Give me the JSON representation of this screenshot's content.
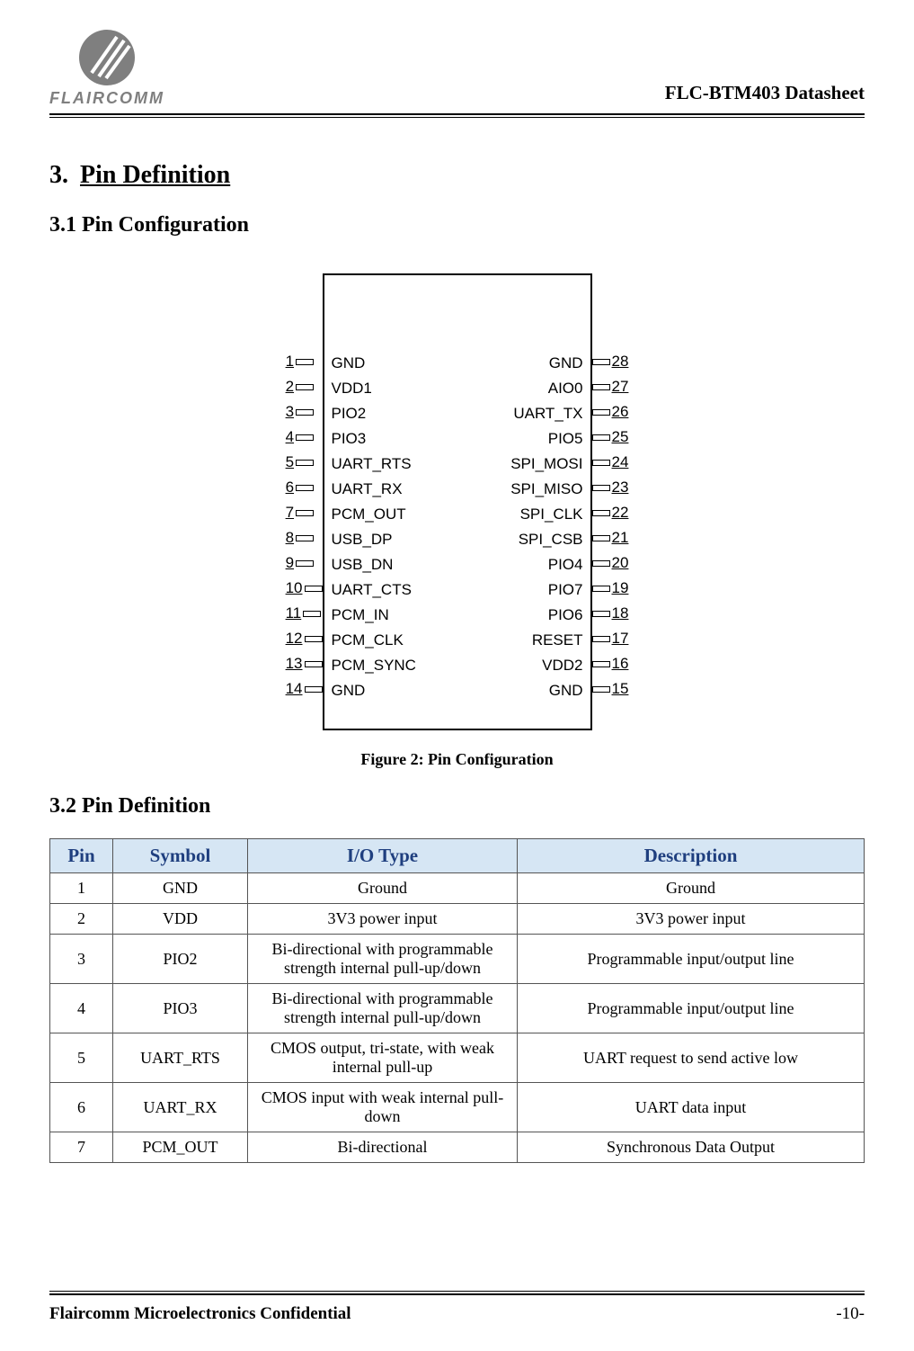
{
  "brand": {
    "name": "FLAIRCOMM"
  },
  "doc": {
    "title": "FLC-BTM403 Datasheet",
    "footer_confidential": "Flaircomm Microelectronics Confidential",
    "page_number": "-10-"
  },
  "section": {
    "number": "3.",
    "title": "Pin Definition",
    "sub1": "3.1  Pin Configuration",
    "sub2": "3.2  Pin Definition",
    "figure_caption": "Figure 2: Pin Configuration"
  },
  "pinout": {
    "left": [
      {
        "num": "1",
        "label": "GND"
      },
      {
        "num": "2",
        "label": "VDD1"
      },
      {
        "num": "3",
        "label": "PIO2"
      },
      {
        "num": "4",
        "label": "PIO3"
      },
      {
        "num": "5",
        "label": "UART_RTS"
      },
      {
        "num": "6",
        "label": "UART_RX"
      },
      {
        "num": "7",
        "label": "PCM_OUT"
      },
      {
        "num": "8",
        "label": "USB_DP"
      },
      {
        "num": "9",
        "label": "USB_DN"
      },
      {
        "num": "10",
        "label": "UART_CTS"
      },
      {
        "num": "11",
        "label": "PCM_IN"
      },
      {
        "num": "12",
        "label": "PCM_CLK"
      },
      {
        "num": "13",
        "label": "PCM_SYNC"
      },
      {
        "num": "14",
        "label": "GND"
      }
    ],
    "right": [
      {
        "num": "28",
        "label": "GND"
      },
      {
        "num": "27",
        "label": "AIO0"
      },
      {
        "num": "26",
        "label": "UART_TX"
      },
      {
        "num": "25",
        "label": "PIO5"
      },
      {
        "num": "24",
        "label": "SPI_MOSI"
      },
      {
        "num": "23",
        "label": "SPI_MISO"
      },
      {
        "num": "22",
        "label": "SPI_CLK"
      },
      {
        "num": "21",
        "label": "SPI_CSB"
      },
      {
        "num": "20",
        "label": "PIO4"
      },
      {
        "num": "19",
        "label": "PIO7"
      },
      {
        "num": "18",
        "label": "PIO6"
      },
      {
        "num": "17",
        "label": "RESET"
      },
      {
        "num": "16",
        "label": "VDD2"
      },
      {
        "num": "15",
        "label": "GND"
      }
    ]
  },
  "table": {
    "headers": {
      "pin": "Pin",
      "symbol": "Symbol",
      "io": "I/O Type",
      "desc": "Description"
    },
    "rows": [
      {
        "pin": "1",
        "symbol": "GND",
        "io": "Ground",
        "desc": "Ground"
      },
      {
        "pin": "2",
        "symbol": "VDD",
        "io": "3V3 power input",
        "desc": "3V3 power input"
      },
      {
        "pin": "3",
        "symbol": "PIO2",
        "io": "Bi-directional with programmable strength internal pull-up/down",
        "desc": "Programmable input/output line"
      },
      {
        "pin": "4",
        "symbol": "PIO3",
        "io": "Bi-directional with programmable strength internal pull-up/down",
        "desc": "Programmable input/output line"
      },
      {
        "pin": "5",
        "symbol": "UART_RTS",
        "io": "CMOS output, tri-state, with weak internal pull-up",
        "desc": "UART request to send active low"
      },
      {
        "pin": "6",
        "symbol": "UART_RX",
        "io": "CMOS input with weak internal pull-down",
        "desc": "UART data input"
      },
      {
        "pin": "7",
        "symbol": "PCM_OUT",
        "io": "Bi-directional",
        "desc": "Synchronous Data Output"
      }
    ]
  },
  "colors": {
    "table_header_bg": "#d6e6f4",
    "table_header_fg": "#1f3f7f",
    "logo_bg": "#7f7f7f"
  }
}
